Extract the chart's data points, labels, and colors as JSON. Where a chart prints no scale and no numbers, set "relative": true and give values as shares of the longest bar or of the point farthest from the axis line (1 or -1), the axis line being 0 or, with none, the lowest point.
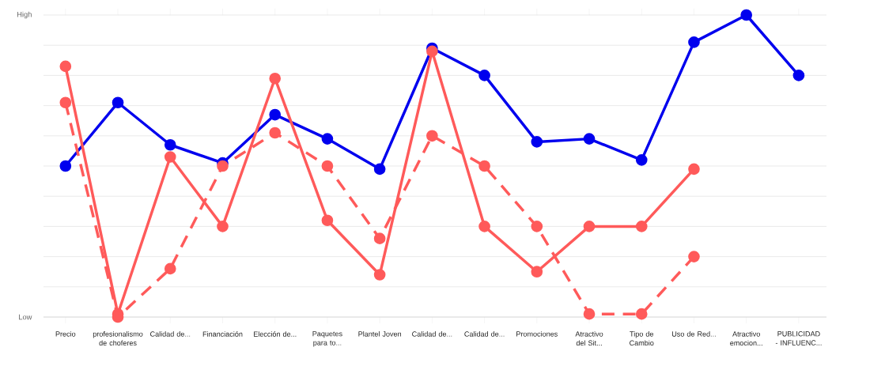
{
  "chart_data": {
    "type": "line",
    "relative": true,
    "grid": "y",
    "marker": "circle",
    "annotations": [
      "High",
      "Low"
    ],
    "categories": [
      "Precio",
      "profesionalismo de choferes",
      "Calidad de...",
      "Financiación",
      "Elección de...",
      "Paquetes para to...",
      "Plantel Joven",
      "Calidad de...",
      "Calidad de...",
      "Promociones",
      "Atractivo del Sit...",
      "Tipo de Cambio",
      "Uso de Red...",
      "Atractivo emocion...",
      "PUBLICIDAD - INFLUENC..."
    ],
    "series": [
      {
        "color": "#0000ee",
        "line_style": "solid",
        "values": [
          0.5,
          0.71,
          0.57,
          0.51,
          0.67,
          0.59,
          0.49,
          0.89,
          0.8,
          0.58,
          0.59,
          0.52,
          0.91,
          1.0,
          0.8
        ]
      },
      {
        "color": "#ff5a5a",
        "line_style": "solid",
        "values": [
          0.83,
          0.01,
          0.53,
          0.3,
          0.79,
          0.32,
          0.14,
          0.88,
          0.3,
          0.15,
          0.3,
          0.3,
          0.49,
          null,
          null
        ]
      },
      {
        "color": "#ff5a5a",
        "line_style": "dashed",
        "values": [
          0.71,
          0.0,
          0.16,
          0.5,
          0.61,
          0.5,
          0.26,
          0.6,
          0.5,
          0.3,
          0.01,
          0.01,
          0.2,
          null,
          null
        ]
      }
    ]
  }
}
